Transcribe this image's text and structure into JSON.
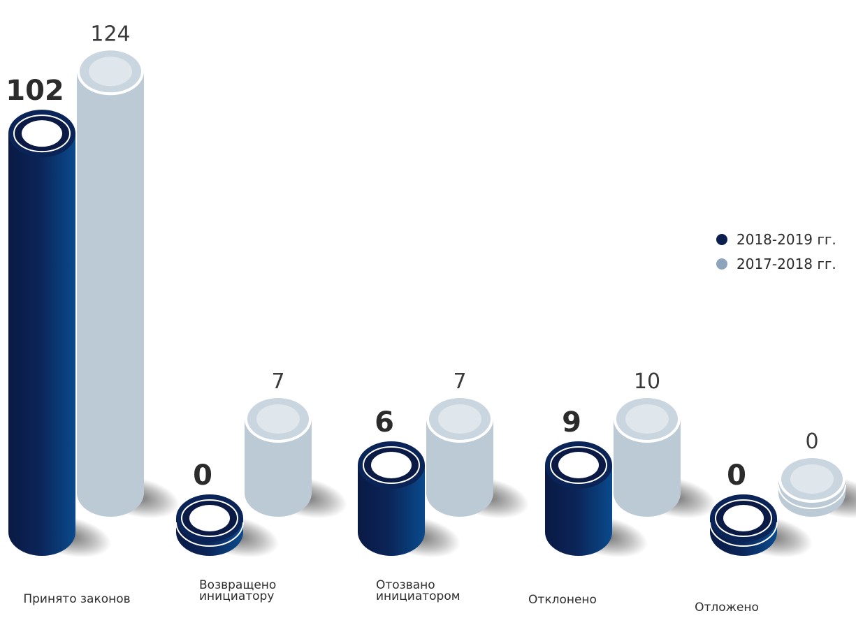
{
  "chart_data": {
    "type": "bar",
    "categories": [
      [
        "Принято законов"
      ],
      [
        "Возвращено",
        "инициатору"
      ],
      [
        "Отозвано",
        "инициатором"
      ],
      [
        "Отклонено"
      ],
      [
        "Отложено"
      ]
    ],
    "series": [
      {
        "name": "2018-2019 гг.",
        "values": [
          102,
          0,
          6,
          9,
          0
        ],
        "color": "#0b1f4e"
      },
      {
        "name": "2017-2018 гг.",
        "values": [
          124,
          7,
          7,
          10,
          0
        ],
        "color": "#8da4bc"
      }
    ],
    "ylim": [
      0,
      124
    ],
    "grid": false,
    "legend_position": "right"
  }
}
